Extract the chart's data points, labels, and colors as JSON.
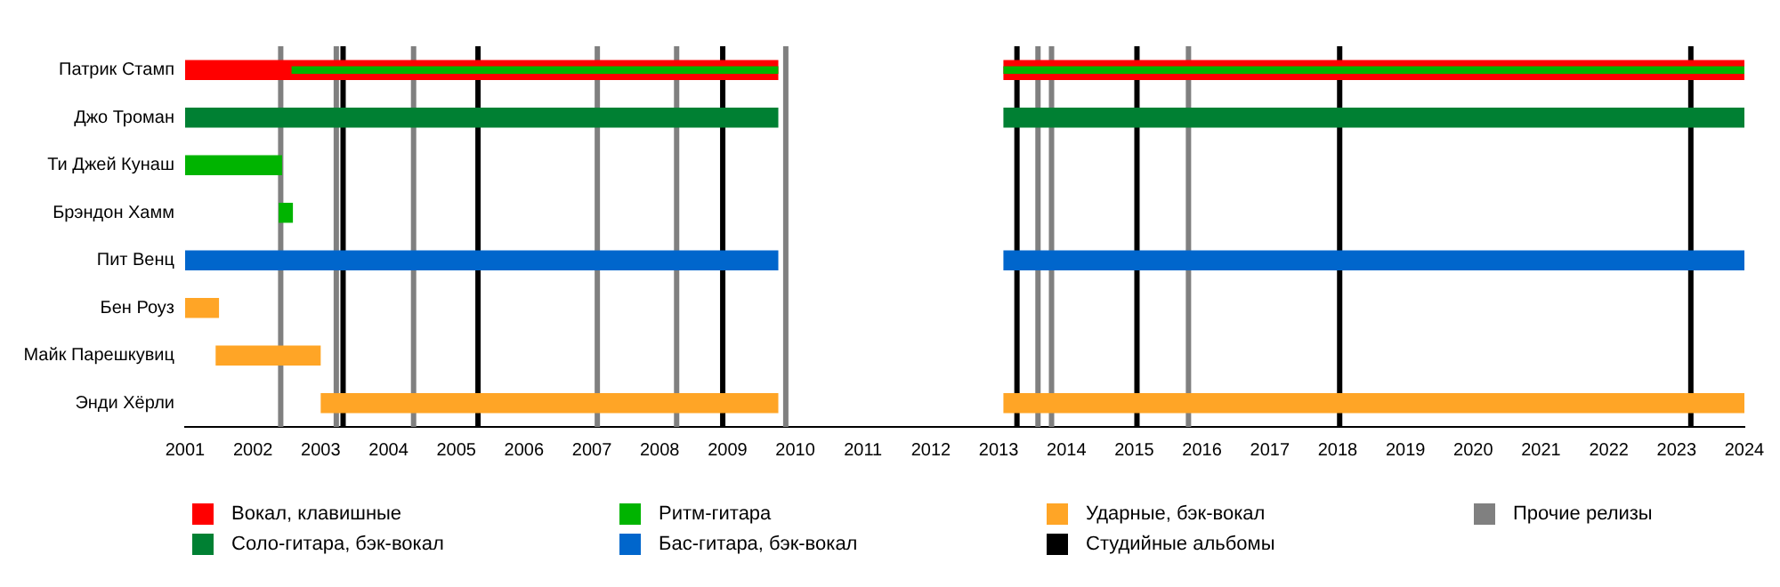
{
  "chart_data": {
    "type": "bar",
    "orientation": "horizontal",
    "categories": [
      "Патрик Стамп",
      "Джо Троман",
      "Ти Джей Кунаш",
      "Брэндон Хамм",
      "Пит Венц",
      "Бен Роуз",
      "Майк Парешкувиц",
      "Энди Хёрли"
    ],
    "series": [
      {
        "name": "Вокал, клавишные",
        "color": "#ff0000",
        "base": [
          2001,
          null,
          null,
          null,
          null,
          null,
          null,
          null
        ],
        "values": [
          8.75,
          null,
          null,
          null,
          null,
          null,
          null,
          null
        ]
      },
      {
        "name": "Соло-гитара, бэк-вокал",
        "color": "#008033",
        "base": [
          null,
          2001,
          null,
          null,
          null,
          null,
          null,
          null
        ],
        "values": [
          null,
          8.75,
          null,
          null,
          null,
          null,
          null,
          null
        ]
      },
      {
        "name": "Ритм-гитара",
        "color": "#00b400",
        "base": [
          2002.57,
          null,
          2001,
          2002.38,
          null,
          null,
          null,
          null
        ],
        "values": [
          7.18,
          null,
          1.43,
          0.21,
          null,
          null,
          null,
          null
        ]
      },
      {
        "name": "Бас-гитара, бэк-вокал",
        "color": "#0066cc",
        "base": [
          null,
          null,
          null,
          null,
          2001,
          null,
          null,
          null
        ],
        "values": [
          null,
          null,
          null,
          null,
          8.75,
          null,
          null,
          null
        ]
      },
      {
        "name": "Ударные, бэк-вокал",
        "color": "#ffa526",
        "base": [
          null,
          null,
          null,
          null,
          null,
          2001,
          2001.45,
          2003
        ],
        "values": [
          null,
          null,
          null,
          null,
          null,
          0.5,
          1.55,
          6.75
        ]
      },
      {
        "color": "#ff0000",
        "base": [
          2013.07,
          null,
          null,
          null,
          null,
          null,
          null,
          null
        ],
        "values": [
          10.93,
          null,
          null,
          null,
          null,
          null,
          null,
          null
        ]
      },
      {
        "color": "#008033",
        "base": [
          null,
          2013.07,
          null,
          null,
          null,
          null,
          null,
          null
        ],
        "values": [
          null,
          10.93,
          null,
          null,
          null,
          null,
          null,
          null
        ]
      },
      {
        "color": "#00b400",
        "base": [
          2013.07,
          null,
          null,
          null,
          null,
          null,
          null,
          null
        ],
        "values": [
          10.93,
          null,
          null,
          null,
          null,
          null,
          null,
          null
        ]
      },
      {
        "color": "#0066cc",
        "base": [
          null,
          null,
          null,
          null,
          2013.07,
          null,
          null,
          null
        ],
        "values": [
          null,
          null,
          null,
          null,
          10.93,
          null,
          null,
          null
        ]
      },
      {
        "color": "#ffa526",
        "base": [
          null,
          null,
          null,
          null,
          null,
          null,
          null,
          2013.07
        ],
        "values": [
          null,
          null,
          null,
          null,
          null,
          null,
          null,
          10.93
        ]
      }
    ],
    "xlim": [
      2001,
      2024
    ],
    "xticks": [
      2001,
      2002,
      2003,
      2004,
      2005,
      2006,
      2007,
      2008,
      2009,
      2010,
      2011,
      2012,
      2013,
      2014,
      2015,
      2016,
      2017,
      2018,
      2019,
      2020,
      2021,
      2022,
      2023,
      2024
    ],
    "ref_lines": [
      {
        "axis": "x",
        "value": 2003.33,
        "label": "Студийные альбомы",
        "color": "#000000"
      },
      {
        "axis": "x",
        "value": 2005.32,
        "color": "#000000"
      },
      {
        "axis": "x",
        "value": 2008.93,
        "color": "#000000"
      },
      {
        "axis": "x",
        "value": 2013.27,
        "color": "#000000"
      },
      {
        "axis": "x",
        "value": 2015.04,
        "color": "#000000"
      },
      {
        "axis": "x",
        "value": 2018.03,
        "color": "#000000"
      },
      {
        "axis": "x",
        "value": 2023.21,
        "color": "#000000"
      },
      {
        "axis": "x",
        "value": 2002.41,
        "label": "Прочие релизы",
        "color": "#808080"
      },
      {
        "axis": "x",
        "value": 2003.23,
        "color": "#808080"
      },
      {
        "axis": "x",
        "value": 2004.37,
        "color": "#808080"
      },
      {
        "axis": "x",
        "value": 2007.08,
        "color": "#808080"
      },
      {
        "axis": "x",
        "value": 2008.25,
        "color": "#808080"
      },
      {
        "axis": "x",
        "value": 2009.86,
        "color": "#808080"
      },
      {
        "axis": "x",
        "value": 2013.58,
        "color": "#808080"
      },
      {
        "axis": "x",
        "value": 2013.78,
        "color": "#808080"
      },
      {
        "axis": "x",
        "value": 2015.8,
        "color": "#808080"
      }
    ],
    "legend": "bottom",
    "grid": false
  }
}
